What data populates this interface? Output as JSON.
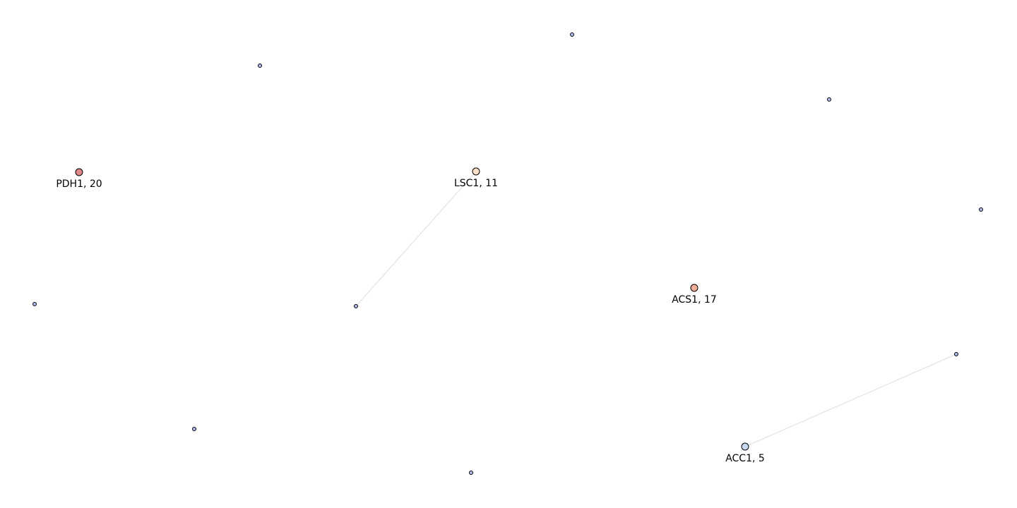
{
  "colors": {
    "edge": "#dddddd",
    "node_stroke": "#000000",
    "label": "#000000"
  },
  "network": {
    "nodes": [
      {
        "id": "PDH1",
        "label": "PDH1, 20",
        "color": "#e08888",
        "size": "large"
      },
      {
        "id": "LSC1",
        "label": "LSC1, 11",
        "color": "#fde0c8",
        "size": "large"
      },
      {
        "id": "ACS1",
        "label": "ACS1, 17",
        "color": "#f4b09a",
        "size": "large"
      },
      {
        "id": "ACC1",
        "label": "ACC1, 5",
        "color": "#c9d8f4",
        "size": "large"
      },
      {
        "id": "n1",
        "label": "",
        "color": "#b0b8f0",
        "size": "small"
      },
      {
        "id": "n2",
        "label": "",
        "color": "#b0b8f0",
        "size": "small"
      },
      {
        "id": "n3",
        "label": "",
        "color": "#b0b8f0",
        "size": "small"
      },
      {
        "id": "n4",
        "label": "",
        "color": "#b0b8f0",
        "size": "small"
      },
      {
        "id": "n5",
        "label": "",
        "color": "#b0b8f0",
        "size": "small"
      },
      {
        "id": "n6",
        "label": "",
        "color": "#b0b8f0",
        "size": "small"
      },
      {
        "id": "n7",
        "label": "",
        "color": "#b0b8f0",
        "size": "small"
      },
      {
        "id": "n8",
        "label": "",
        "color": "#b0b8f0",
        "size": "small"
      },
      {
        "id": "n9",
        "label": "",
        "color": "#b0b8f0",
        "size": "small"
      },
      {
        "id": "n10",
        "label": "",
        "color": "#b0b8f0",
        "size": "small"
      }
    ],
    "edges": [
      {
        "source": "LSC1",
        "target": "n4"
      },
      {
        "source": "ACC1",
        "target": "n9"
      }
    ]
  }
}
